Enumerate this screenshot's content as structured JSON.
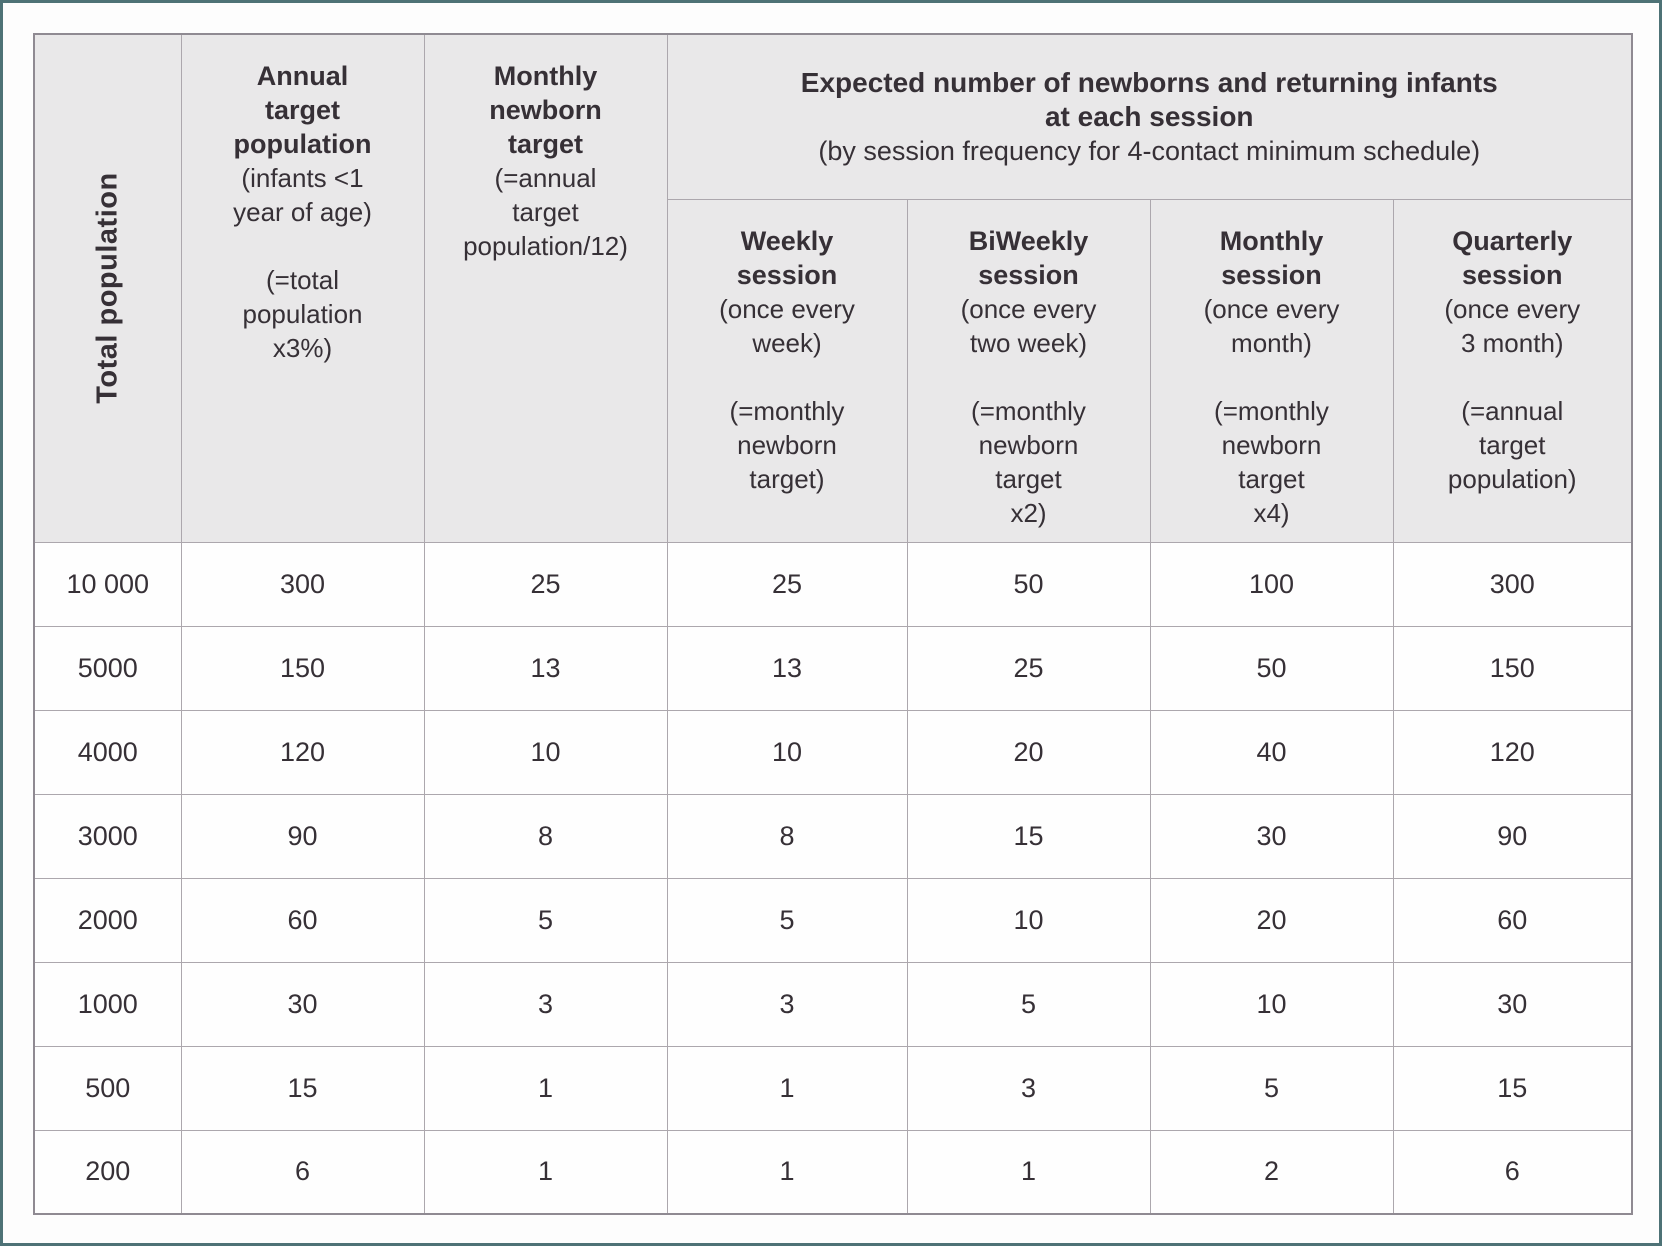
{
  "table": {
    "merged_header": {
      "title": "Expected number of newborns and returning infants\nat each session",
      "subtitle": "(by session frequency for 4-contact minimum schedule)"
    },
    "columns": {
      "population": {
        "title": "Total population"
      },
      "annual_target": {
        "title": "Annual\ntarget\npopulation",
        "desc": "(infants <1\nyear of age)",
        "formula": "(=total\npopulation\nx3%)"
      },
      "monthly_newborn": {
        "title": "Monthly\nnewborn\ntarget",
        "desc": "(=annual\ntarget\npopulation/12)",
        "formula": ""
      },
      "weekly": {
        "title": "Weekly\nsession",
        "desc": "(once every\nweek)",
        "formula": "(=monthly\nnewborn\ntarget)"
      },
      "biweekly": {
        "title": "BiWeekly\nsession",
        "desc": "(once every\ntwo week)",
        "formula": "(=monthly\nnewborn\ntarget\nx2)"
      },
      "monthly": {
        "title": "Monthly\nsession",
        "desc": "(once every\nmonth)",
        "formula": "(=monthly\nnewborn\ntarget\nx4)"
      },
      "quarterly": {
        "title": "Quarterly\nsession",
        "desc": "(once every\n3 month)",
        "formula": "(=annual\ntarget\npopulation)"
      }
    },
    "rows": [
      {
        "population": "10 000",
        "values": [
          "300",
          "25",
          "25",
          "50",
          "100",
          "300"
        ]
      },
      {
        "population": "5000",
        "values": [
          "150",
          "13",
          "13",
          "25",
          "50",
          "150"
        ]
      },
      {
        "population": "4000",
        "values": [
          "120",
          "10",
          "10",
          "20",
          "40",
          "120"
        ]
      },
      {
        "population": "3000",
        "values": [
          "90",
          "8",
          "8",
          "15",
          "30",
          "90"
        ]
      },
      {
        "population": "2000",
        "values": [
          "60",
          "5",
          "5",
          "10",
          "20",
          "60"
        ]
      },
      {
        "population": "1000",
        "values": [
          "30",
          "3",
          "3",
          "5",
          "10",
          "30"
        ]
      },
      {
        "population": "500",
        "values": [
          "15",
          "1",
          "1",
          "3",
          "5",
          "15"
        ]
      },
      {
        "population": "200",
        "values": [
          "6",
          "1",
          "1",
          "1",
          "2",
          "6"
        ]
      }
    ]
  },
  "colors": {
    "page_border": "#4e7276",
    "header_bg": "#e9e8e9",
    "grid_line": "#aca7ad",
    "text": "#363036"
  }
}
